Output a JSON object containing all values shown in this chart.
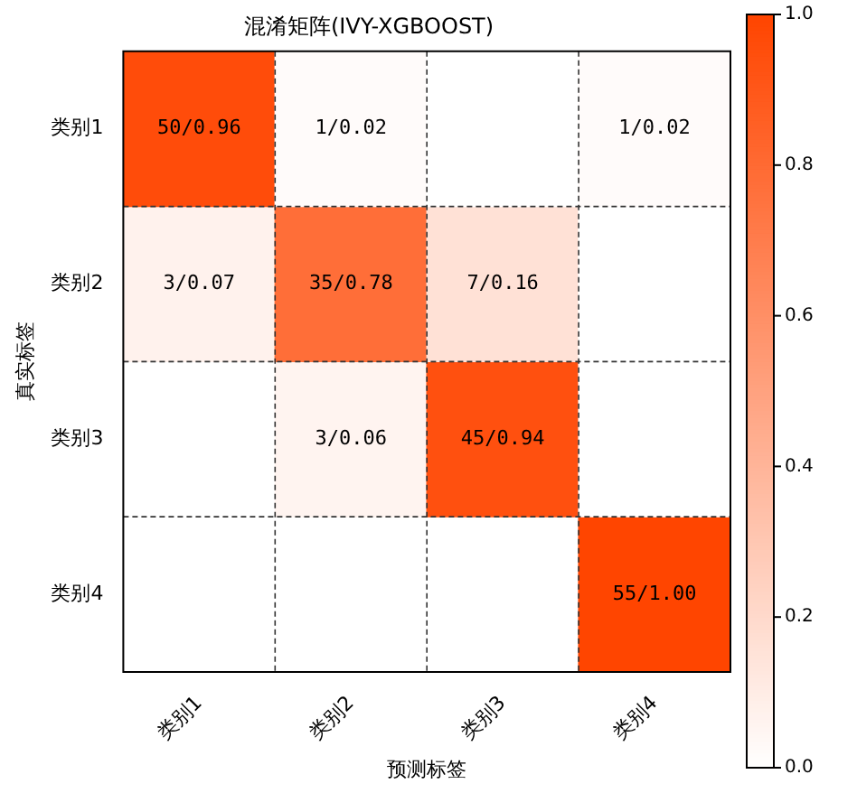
{
  "chart_data": {
    "type": "heatmap",
    "title": "混淆矩阵(IVY-XGBOOST)",
    "xlabel": "预测标签",
    "ylabel": "真实标签",
    "categories": [
      "类别1",
      "类别2",
      "类别3",
      "类别4"
    ],
    "y_categories": [
      "类别1",
      "类别2",
      "类别3",
      "类别4"
    ],
    "cells": [
      [
        0.96,
        0.02,
        0,
        0.02
      ],
      [
        0.07,
        0.78,
        0.16,
        0
      ],
      [
        0,
        0.06,
        0.94,
        0
      ],
      [
        0,
        0,
        0,
        1.0
      ]
    ],
    "cell_labels": [
      [
        "50/0.96",
        "1/0.02",
        null,
        "1/0.02"
      ],
      [
        "3/0.07",
        "35/0.78",
        "7/0.16",
        null
      ],
      [
        null,
        "3/0.06",
        "45/0.94",
        null
      ],
      [
        null,
        null,
        null,
        "55/1.00"
      ]
    ],
    "colors": [
      "#ffffff",
      "#ff4500"
    ],
    "clim": [
      0,
      1
    ],
    "cticks": [
      {
        "value": 0,
        "label": "0.0"
      },
      {
        "value": 0.2,
        "label": "0.2"
      },
      {
        "value": 0.4,
        "label": "0.4"
      },
      {
        "value": 0.6,
        "label": "0.6"
      },
      {
        "value": 0.8,
        "label": "0.8"
      },
      {
        "value": 1,
        "label": "1.0"
      }
    ],
    "grid": true
  }
}
